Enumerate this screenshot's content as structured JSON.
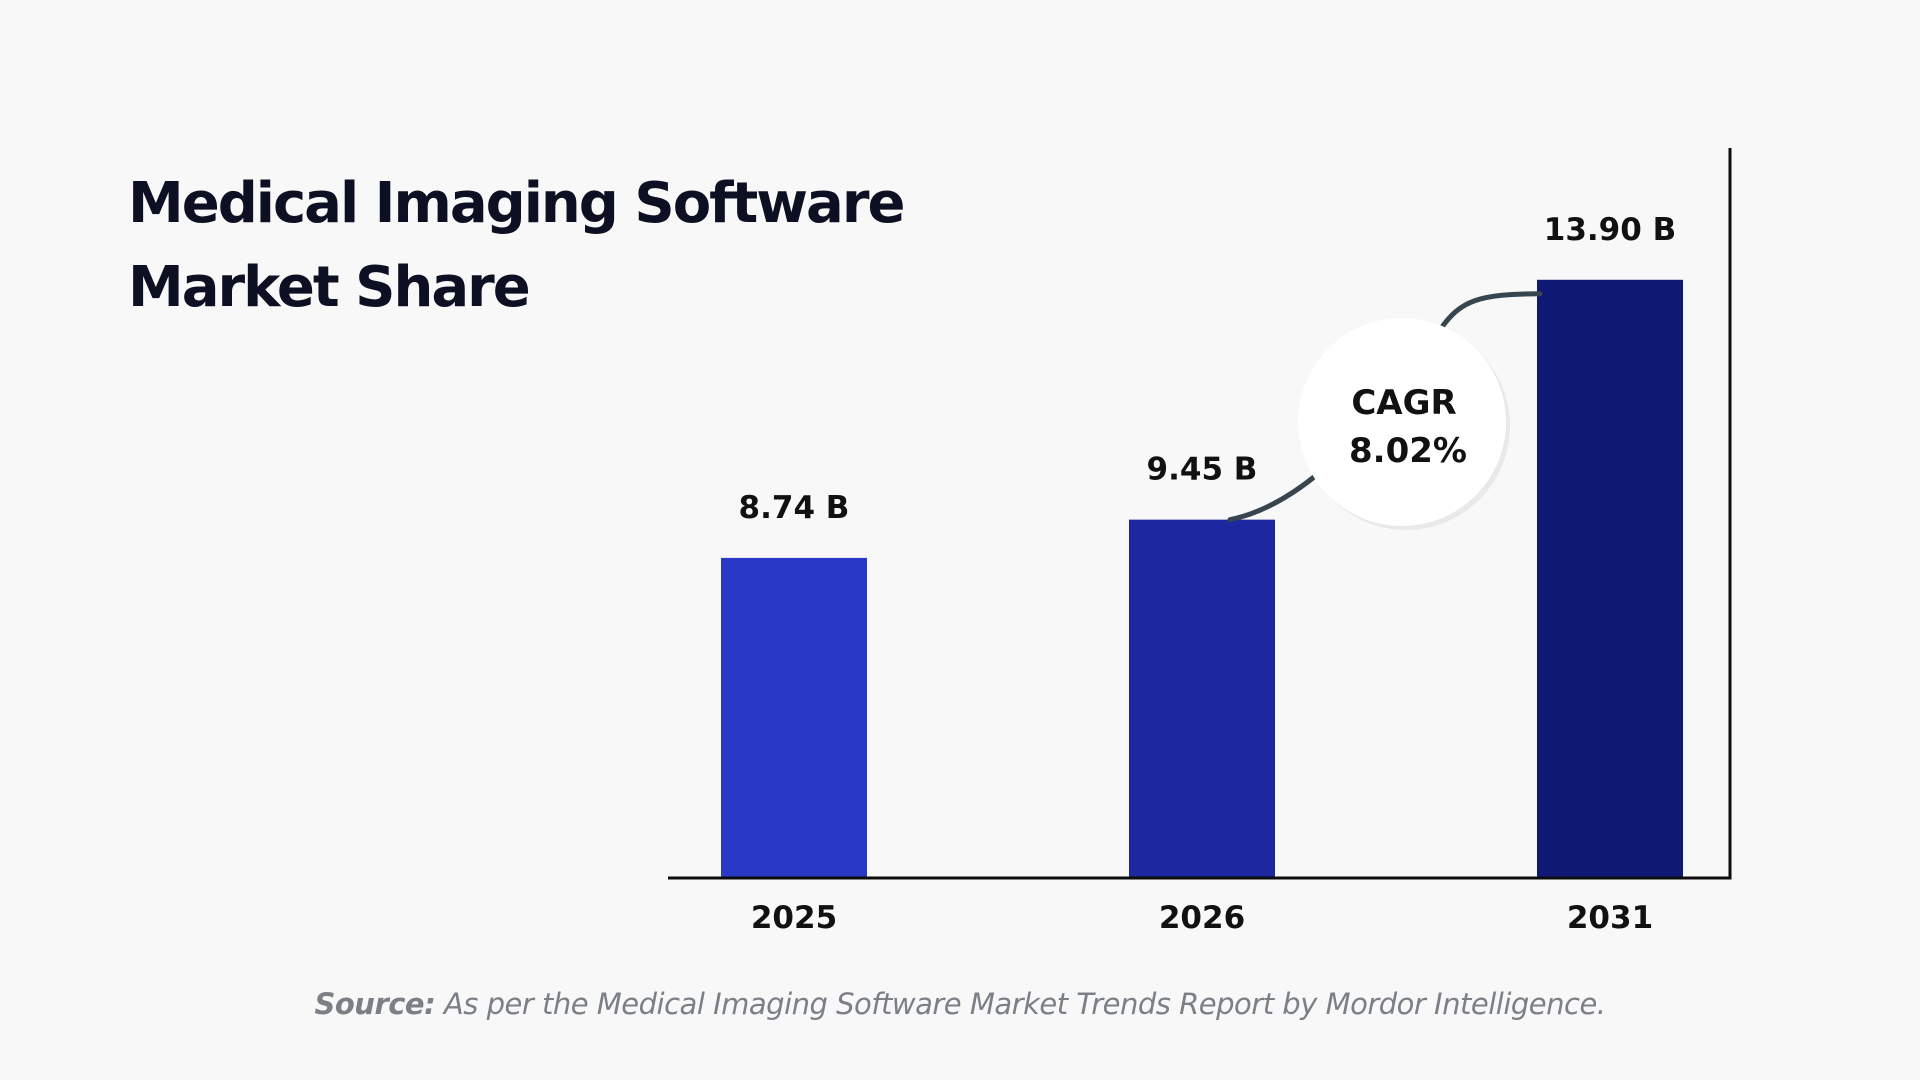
{
  "title": {
    "line1": "Medical Imaging Software",
    "line2": "Market Share"
  },
  "colors": {
    "background": "#f8f8f8",
    "title": "#0d1023",
    "bars": [
      "#2a38c6",
      "#1c27a0",
      "#0f1872"
    ],
    "axis": "#0d0d0d",
    "cagr_arc": "#37454f",
    "source_text": "#7b8087"
  },
  "chart_data": {
    "type": "bar",
    "title": "Medical Imaging Software Market Share",
    "categories": [
      "2025",
      "2026",
      "2031"
    ],
    "values": [
      8.74,
      9.45,
      13.9
    ],
    "value_labels": [
      "8.74 B",
      "9.45 B",
      "13.90 B"
    ],
    "unit": "B",
    "ylim": [
      0,
      15
    ],
    "grid": false,
    "legend": "none",
    "annotation": {
      "line1": "CAGR",
      "line2": "8.02%"
    }
  },
  "source": {
    "label": "Source:",
    "text": " As per the Medical Imaging Software Market Trends Report by Mordor Intelligence."
  }
}
